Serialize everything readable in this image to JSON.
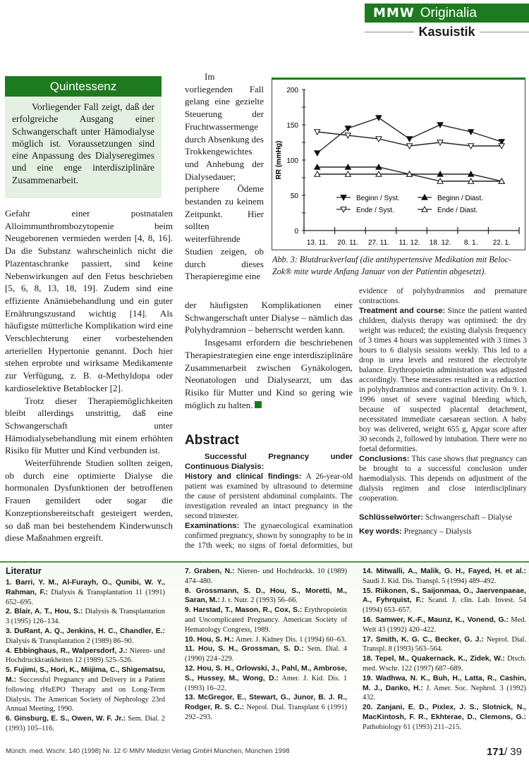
{
  "header": {
    "brand": "MMW",
    "section": "Originalia",
    "subsection": "Kasuistik"
  },
  "quintessenz": {
    "title": "Quintessenz",
    "text": "Vorliegender Fall zeigt, daß der erfolgreiche Ausgang einer Schwangerschaft unter Hämodialyse möglich ist. Voraussetzungen sind eine Anpassung des Dialyseregimes und eine enge interdisziplinäre Zusammenarbeit."
  },
  "col1": {
    "paragraphs": [
      "Gefahr einer postnatalen Alloimmunthrombozytopenie beim Neugeborenen vermieden werden [4, 8, 16]. Da die Substanz wahrscheinlich nicht die Plazentaschranke passiert, sind keine Nebenwirkungen auf den Fetus beschrieben [5, 6, 8, 13, 18, 19]. Zudem sind eine effiziente Anämiebehandlung und ein guter Ernährungszustand wichtig [14]. Als häufigste mütterliche Komplikation wird eine Verschlechterung einer vorbestehenden arteriellen Hypertonie genannt. Doch hier stehen erprobte und wirksame Medikamente zur Verfügung, z. B. α-Methyldopa oder kardioselektive Betablocker [2].",
      "Trotz dieser Therapiemöglichkeiten bleibt allerdings unstrittig, daß eine Schwangerschaft unter Hämodialysebehandlung mit einem erhöhten Risiko für Mutter und Kind verbunden ist.",
      "Weiterführende Studien sollten zeigen, ob durch eine optimierte Dialyse die hormonalen Dysfunktionen der betroffenen Frauen gemildert oder sogar die Konzeptionsbereitschaft gesteigert werden, so daß man bei bestehendem Kinderwunsch diese Maßnahmen ergreift."
    ]
  },
  "col2": {
    "narrow": "Im vorliegenden Fall gelang eine gezielte Steuerung der Fruchtwassermenge durch Absenkung des Trokkengewichtes und Anhebung der Dialysedauer; periphere Ödeme bestanden zu keinem Zeitpunkt. Hier sollten weiterführende Studien zeigen, ob durch dieses Therapieregime eine",
    "wide": "der häufigsten Komplikationen einer Schwangerschaft unter Dialyse – nämlich das Polyhydramnion – beherrscht werden kann.",
    "para2": "Insgesamt erfordern die beschriebenen Therapiestrategien eine enge interdisziplinäre Zusammenarbeit zwischen Gynäkologen, Neonatologen und Dialysearzt, um das Risiko für Mutter und Kind so gering wie möglich zu halten."
  },
  "abstract": {
    "heading": "Abstract",
    "title": "Successful Pregnancy under Continuous Dialysis:",
    "sections": [
      {
        "label": "History and clinical findings:",
        "text": " A 26-year-old patient was examined by ultrasound to determine the cause of persistent abdominal complaints. The investigation revealed an intact pregnancy in the second trimester."
      },
      {
        "label": "Examinations:",
        "text": " The gynaecological examination confirmed pregnancy, shown by sonography to be in the 17th week; no signs of foetal deformities, but evidence of polyhydramnios and premature contractions."
      },
      {
        "label": "Treatment and course:",
        "text": " Since the patient wanted children, dialysis therapy was optimised: the dry weight was reduced; the existing dialysis frequency of 3 times 4 hours was supplemented with 3 times 3 hours to 6 dialysis sessions weekly. This led to a drop in urea levels and restored the electrolyte balance. Erythropoietin administration was adjusted accordingly. These measures resulted in a reduction in polyhydramnios and contraction activity. On 9. 1. 1996 onset of severe vaginal bleeding which, because of suspected placental detachment, necessitated immediate caesarean section. A baby boy was delivered, weight 655 g, Apgar score after 30 seconds 2, followed by intubation. There were no foetal deformities."
      },
      {
        "label": "Conclusions:",
        "text": " This case shows that pregnancy can be brought to a successful conclusion under haemodialysis. This depends on adjustment of the dialysis regimen and close interdisciplinary cooperation."
      }
    ],
    "keywords_de_label": "Schlüsselwörter:",
    "keywords_de": " Schwangerschaft – Dialyse",
    "keywords_en_label": "Key words:",
    "keywords_en": " Pregnancy – Dialysis"
  },
  "figure": {
    "caption": "Abb. 3: Blutdruckverlauf (die antihypertensive Medikation mit Beloc-Zok® mite wurde Anfang Januar von der Patientin abgesetzt)."
  },
  "chart_data": {
    "type": "line",
    "ylabel": "RR (mmHg)",
    "xlabel": "",
    "ylim": [
      0,
      200
    ],
    "yticks": [
      "0",
      "50",
      "100",
      "150",
      "200"
    ],
    "categories": [
      "13. 11.",
      "20. 11.",
      "27. 11.",
      "11. 12.",
      "18. 12.",
      "8. 1.",
      "22. 1."
    ],
    "grid": false,
    "legend": "inside-bottom",
    "series": [
      {
        "name": "Beginn / Syst.",
        "marker": "filled-down-triangle",
        "values": [
          110,
          145,
          160,
          130,
          150,
          140,
          126
        ]
      },
      {
        "name": "Ende / Syst.",
        "marker": "open-down-triangle",
        "values": [
          140,
          135,
          130,
          120,
          125,
          120,
          120
        ]
      },
      {
        "name": "Beginn / Diast.",
        "marker": "filled-up-triangle",
        "values": [
          90,
          90,
          90,
          80,
          80,
          80,
          70
        ]
      },
      {
        "name": "Ende / Diast.",
        "marker": "open-up-triangle",
        "values": [
          80,
          80,
          80,
          80,
          70,
          70,
          70
        ]
      }
    ]
  },
  "literatur": {
    "title": "Literatur",
    "refs": [
      {
        "a": "1. Barri, Y. M., Al-Furayh, O., Qunibi, W. Y., Rahman, F.:",
        "s": " Dialysis & Transplantation 11 (1991) 652–695."
      },
      {
        "a": "2. Blair, A. T., Hou, S.:",
        "s": " Dialysis & Transplantation 3 (1995) 126–134."
      },
      {
        "a": "3. DuRant, A. Q., Jenkins, H. C., Chandler, E.:",
        "s": " Dialysis & Transplantation 2 (1989) 86–90."
      },
      {
        "a": "4. Ebbinghaus, R., Walpersdorf, J.:",
        "s": " Nieren- und Hochdruckkrankheiten 12 (1989) 525–526."
      },
      {
        "a": "5. Fujimi, S., Hori, K., Miijima, C., Shigematsu, M.:",
        "s": " Successful Pregnancy and Delivery in a Patient following rHuEPO Therapy and on Long-Term Dialysis. The American Society of Nephrology 23rd Annual Meeting, 1990."
      },
      {
        "a": "6. Ginsburg, E. S., Owen, W. F. Jr.:",
        "s": " Sem. Dial. 2 (1993) 105–116."
      },
      {
        "a": "7. Graben, N.:",
        "s": " Nieren- und Hochdruckk. 10 (1989) 474–480."
      },
      {
        "a": "8. Grossmann, S. D., Hou, S., Moretti, M., Saran, M.:",
        "s": " J. r. Nutr. 2 (1993) 56–66."
      },
      {
        "a": "9. Harstad, T., Mason, R., Cox, S.:",
        "s": " Erythropoietin and Uncomplicated Pregnancy. American Society of Hematology Congress, 1989."
      },
      {
        "a": "10. Hou, S. H.:",
        "s": " Amer. J. Kidney Dis. 1 (1994) 60–63."
      },
      {
        "a": "11. Hou, S. H., Grossman, S. D.:",
        "s": " Sem. Dial. 4 (1990) 224–229."
      },
      {
        "a": "12. Hou, S. H., Orlowski, J., Pahl, M., Ambrose, S., Hussey, M., Wong, D.:",
        "s": " Amer. J. Kid. Dis. 1 (1993) 16–22."
      },
      {
        "a": "13. McGregor, E., Stewart, G., Junor, B. J. R., Rodger, R. S. C.:",
        "s": " Neprol. Dial. Transplant 6 (1991) 292–293."
      },
      {
        "a": "14. Mitwalli, A., Malik, G. H., Fayed, H. et al.:",
        "s": " Saudi J. Kid. Dis. Transpl. 5 (1994) 489–492."
      },
      {
        "a": "15. Riikonen, S., Saijonmaa, O., Jaervenpaeae, A., Fyhrquist, F.:",
        "s": " Scand. J. clin. Lab. Invest. 54 (1994) 653–657."
      },
      {
        "a": "16. Samwer, K.-F., Maunz, K., Vonend, G.:",
        "s": " Med. Welt 43 (1992) 420–422."
      },
      {
        "a": "17. Smith, K. G. C., Becker, G. J.:",
        "s": " Neprol. Dial. Transpl. 8 (1993) 563–564."
      },
      {
        "a": "18. Tepel, M., Quakernack, K., Zidek, W.:",
        "s": " Dtsch. med. Wschr. 122 (1997) 687–689."
      },
      {
        "a": "19. Wadhwa, N. K., Buh, H., Latta, R., Cashin, M. J., Danko, H.:",
        "s": " J. Amer. Soc. Nephrol. 3 (1992) 432."
      },
      {
        "a": "20. Zanjani, E. D., Pixlex, J. S., Slotnick, N., MacKintosh, F. R., Ekhterae, D., Clemons, G.:",
        "s": " Pathobiology 61 (1993) 211–215."
      }
    ]
  },
  "footer": {
    "citation": "Münch. med. Wschr. 140 (1998) Nr. 12  © MMV Medizin Verlag GmbH München, München 1998",
    "page": "171",
    "page2": "/ 39"
  }
}
